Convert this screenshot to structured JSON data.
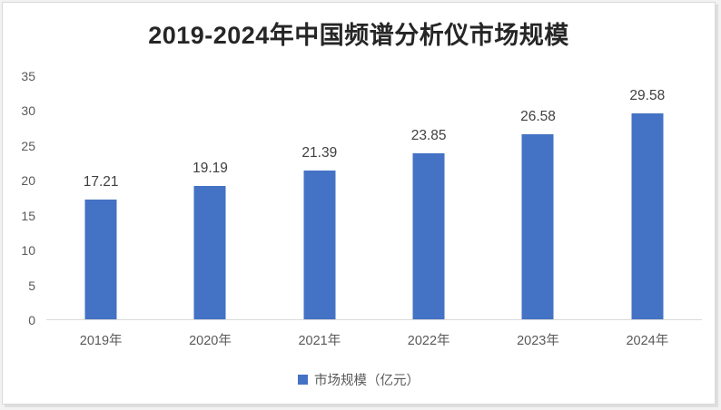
{
  "chart_data": {
    "type": "bar",
    "title": "2019-2024年中国频谱分析仪市场规模",
    "categories": [
      "2019年",
      "2020年",
      "2021年",
      "2022年",
      "2023年",
      "2024年"
    ],
    "series": [
      {
        "name": "市场规模（亿元）",
        "values": [
          17.21,
          19.19,
          21.39,
          23.85,
          26.58,
          29.58
        ]
      }
    ],
    "data_labels": [
      "17.21",
      "19.19",
      "21.39",
      "23.85",
      "26.58",
      "29.58"
    ],
    "legend": "市场规模（亿元）",
    "legend_position": "bottom",
    "xlabel": "",
    "ylabel": "",
    "ylim": [
      0,
      35
    ],
    "yticks": [
      0,
      5,
      10,
      15,
      20,
      25,
      30,
      35
    ],
    "grid": false,
    "bar_color": "#4472c4",
    "title_color": "#262626",
    "data_label_color": "#404040",
    "axis_text_color": "#595959",
    "axis_line_color": "#d9d9d9",
    "frame_border_color": "#d9d9d9",
    "background_color": "#ffffff"
  }
}
